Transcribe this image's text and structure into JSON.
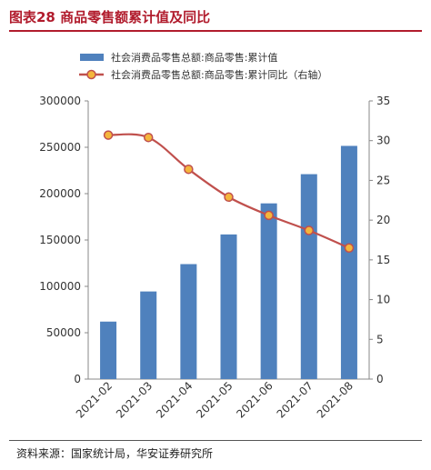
{
  "figure": {
    "title": "图表28  商品零售额累计值及同比",
    "source": "资料来源：国家统计局，华安证券研究所"
  },
  "colors": {
    "bar": "#4f81bd",
    "line": "#c0504d",
    "marker_fill": "#f4b63c",
    "title": "#b11c2d"
  },
  "chart_data": {
    "type": "bar",
    "categories": [
      "2021-02",
      "2021-03",
      "2021-04",
      "2021-05",
      "2021-06",
      "2021-07",
      "2021-08"
    ],
    "series": [
      {
        "name": "社会消费品零售总额:商品零售:累计值",
        "type": "bar",
        "axis": "left",
        "values": [
          62000,
          94500,
          124000,
          156000,
          189500,
          221000,
          251500
        ]
      },
      {
        "name": "社会消费品零售总额:商品零售:累计同比（右轴）",
        "type": "line",
        "axis": "right",
        "values": [
          30.7,
          30.4,
          26.4,
          22.9,
          20.6,
          18.7,
          16.5
        ]
      }
    ],
    "y_left": {
      "ylim": [
        0,
        300000
      ],
      "ticks": [
        "0",
        "50000",
        "100000",
        "150000",
        "200000",
        "250000",
        "300000"
      ]
    },
    "y_right": {
      "ylim": [
        0,
        35
      ],
      "ticks": [
        "0",
        "5",
        "10",
        "15",
        "20",
        "25",
        "30",
        "35"
      ]
    },
    "legend_position": "top-left",
    "grid": false
  }
}
